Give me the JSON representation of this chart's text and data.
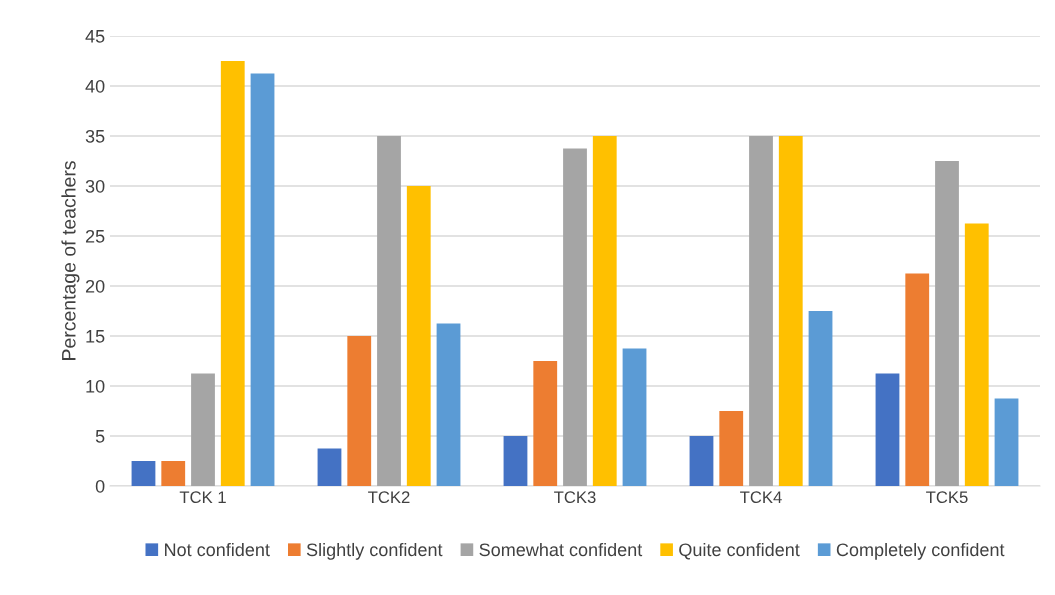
{
  "chart_data": {
    "type": "bar",
    "ylabel": "Percentage of teachers",
    "categories": [
      "TCK 1",
      "TCK2",
      "TCK3",
      "TCK4",
      "TCK5"
    ],
    "series": [
      {
        "name": "Not confident",
        "color": "#4472c4",
        "values": [
          2.5,
          3.75,
          5,
          5,
          11.25
        ]
      },
      {
        "name": "Slightly confident",
        "color": "#ed7d31",
        "values": [
          2.5,
          15,
          12.5,
          7.5,
          21.25
        ]
      },
      {
        "name": "Somewhat confident",
        "color": "#a5a5a5",
        "values": [
          11.25,
          35,
          33.75,
          35,
          32.5
        ]
      },
      {
        "name": "Quite confident",
        "color": "#ffc000",
        "values": [
          42.5,
          30,
          35,
          35,
          26.25
        ]
      },
      {
        "name": "Completely confident",
        "color": "#5b9bd5",
        "values": [
          41.25,
          16.25,
          13.75,
          17.5,
          8.75
        ]
      }
    ],
    "ylim": [
      0,
      45
    ],
    "yticks": [
      0,
      5,
      10,
      15,
      20,
      25,
      30,
      35,
      40,
      45
    ],
    "grid": "y",
    "legend": "bottom"
  }
}
